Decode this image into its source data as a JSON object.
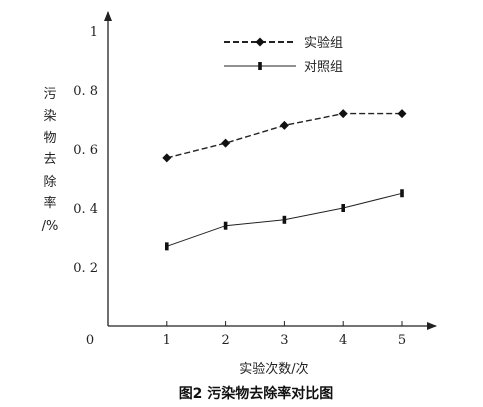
{
  "chart_data": {
    "type": "line",
    "caption": "图2  污染物去除率对比图",
    "xlabel": "实验次数/次",
    "ylabel": [
      "污",
      "染",
      "物",
      "去",
      "除",
      "率",
      "/%"
    ],
    "origin_label": "0",
    "x": [
      1,
      2,
      3,
      4,
      5
    ],
    "x_tick_labels": [
      "1",
      "2",
      "3",
      "4",
      "5"
    ],
    "y_ticks": [
      0.2,
      0.4,
      0.6,
      0.8,
      1
    ],
    "y_tick_labels": [
      "0. 2",
      "0. 4",
      "0. 6",
      "0. 8",
      "1"
    ],
    "xlim": [
      0,
      5.5
    ],
    "ylim": [
      0,
      1.1
    ],
    "grid": false,
    "legend_position": "top-center",
    "series": [
      {
        "name": "实验组",
        "values": [
          0.57,
          0.62,
          0.68,
          0.72,
          0.72
        ],
        "line_style": "dashed",
        "marker": "diamond"
      },
      {
        "name": "对照组",
        "values": [
          0.27,
          0.34,
          0.36,
          0.4,
          0.45
        ],
        "line_style": "solid",
        "marker": "bar"
      }
    ]
  }
}
